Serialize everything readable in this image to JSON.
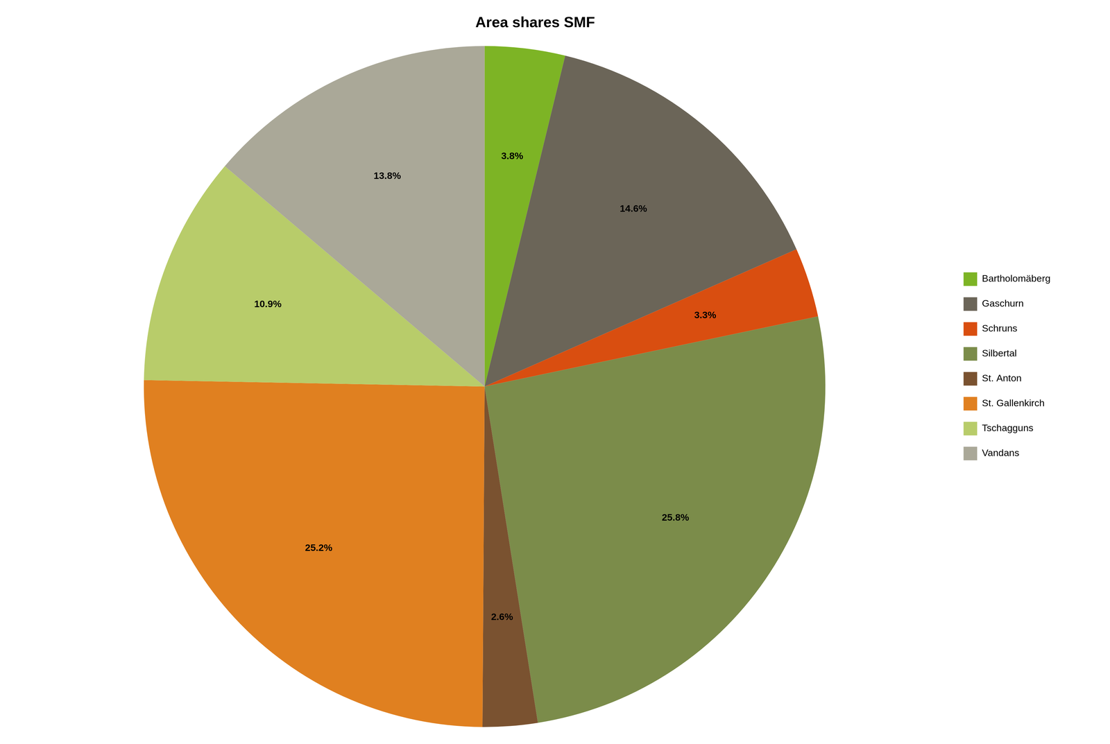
{
  "chart_data": {
    "type": "pie",
    "title": "Area shares SMF",
    "categories": [
      "Bartholomäberg",
      "Gaschurn",
      "Schruns",
      "Silbertal",
      "St. Anton",
      "St. Gallenkirch",
      "Tschagguns",
      "Vandans"
    ],
    "values": [
      3.8,
      14.6,
      3.3,
      25.8,
      2.6,
      25.2,
      10.9,
      13.8
    ],
    "value_labels": [
      "3.8%",
      "14.6%",
      "3.3%",
      "25.8%",
      "2.6%",
      "25.2%",
      "10.9%",
      "13.8%"
    ],
    "colors": [
      "#7db425",
      "#6b6558",
      "#d94e10",
      "#7b8c4a",
      "#7a5230",
      "#e08020",
      "#b8cc6a",
      "#aaa898"
    ],
    "legend": "right",
    "data_labels": true
  }
}
